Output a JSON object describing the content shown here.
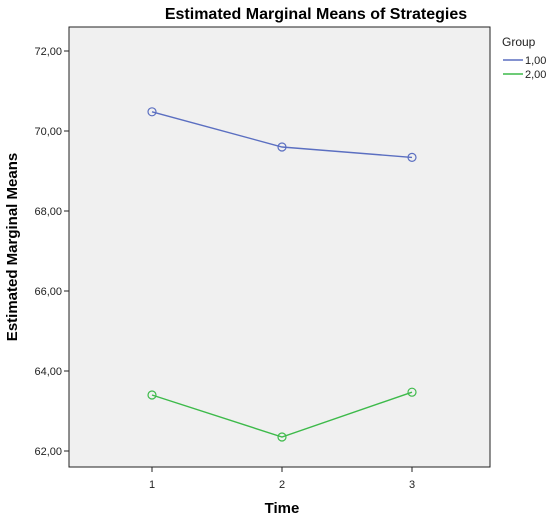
{
  "chart_data": {
    "type": "line",
    "title": "Estimated Marginal Means of Strategies",
    "xlabel": "Time",
    "ylabel": "Estimated Marginal Means",
    "categories": [
      "1",
      "2",
      "3"
    ],
    "ylim": [
      61.6,
      72.6
    ],
    "yticks": [
      62,
      64,
      66,
      68,
      70,
      72
    ],
    "ytick_labels": [
      "62,00",
      "64,00",
      "66,00",
      "68,00",
      "70,00",
      "72,00"
    ],
    "grid": false,
    "legend": {
      "title": "Group",
      "position": "right"
    },
    "series": [
      {
        "name": "1,00",
        "color": "#5b6fc1",
        "values": [
          70.48,
          69.6,
          69.34
        ]
      },
      {
        "name": "2,00",
        "color": "#3dba4a",
        "values": [
          63.4,
          62.35,
          63.47
        ]
      }
    ],
    "plot_background": "#f0f0f0"
  }
}
